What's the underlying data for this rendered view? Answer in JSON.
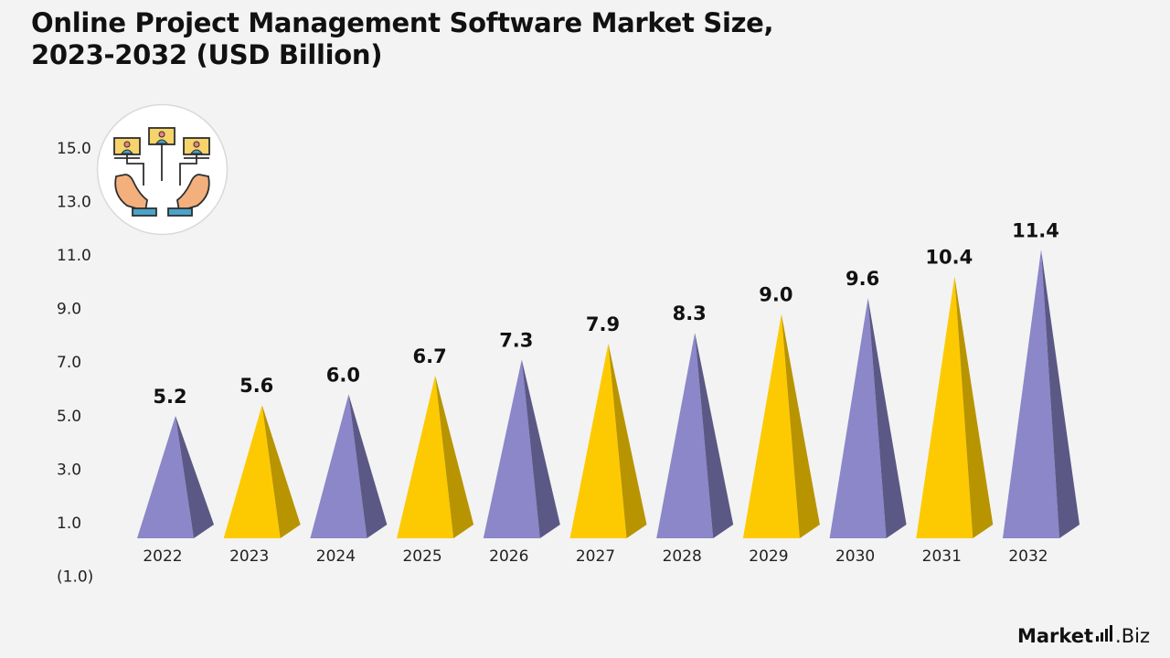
{
  "title_line1": "Online Project Management Software Market Size,",
  "title_line2": "2023-2032 (USD Billion)",
  "chart_data": {
    "type": "bar",
    "title": "Online Project Management Software Market Size, 2023-2032 (USD Billion)",
    "categories": [
      "2022",
      "2023",
      "2024",
      "2025",
      "2026",
      "2027",
      "2028",
      "2029",
      "2030",
      "2031",
      "2032"
    ],
    "values": [
      5.2,
      5.6,
      6.0,
      6.7,
      7.3,
      7.9,
      8.3,
      9.0,
      9.6,
      10.4,
      11.4
    ],
    "value_labels": [
      "5.2",
      "5.6",
      "6.0",
      "6.7",
      "7.3",
      "7.9",
      "8.3",
      "9.0",
      "9.6",
      "10.4",
      "11.4"
    ],
    "yticks": [
      "15.0",
      "13.0",
      "11.0",
      "9.0",
      "7.0",
      "5.0",
      "3.0",
      "1.0",
      "(1.0)"
    ],
    "ylim": [
      -1,
      15
    ],
    "xlabel": "",
    "ylabel": "",
    "grid": false,
    "legend": "none",
    "colors": {
      "purple_front": "#8b87c8",
      "purple_side": "#5b5885",
      "yellow_front": "#fdca01",
      "yellow_side": "#b89400"
    }
  },
  "logo": {
    "main": "Market",
    "suffix": ".Biz"
  }
}
